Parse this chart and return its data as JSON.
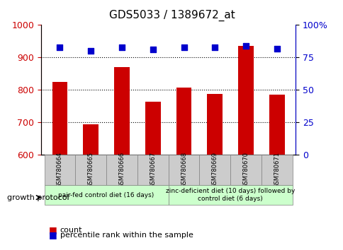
{
  "title": "GDS5033 / 1389672_at",
  "samples": [
    "GSM780664",
    "GSM780665",
    "GSM780666",
    "GSM780667",
    "GSM780668",
    "GSM780669",
    "GSM780670",
    "GSM780671"
  ],
  "counts": [
    825,
    695,
    870,
    765,
    808,
    787,
    935,
    785
  ],
  "percentiles": [
    83,
    80,
    83,
    81,
    83,
    83,
    84,
    82
  ],
  "ylim_left": [
    600,
    1000
  ],
  "ylim_right": [
    0,
    100
  ],
  "yticks_left": [
    600,
    700,
    800,
    900,
    1000
  ],
  "yticks_right": [
    0,
    25,
    50,
    75,
    100
  ],
  "bar_color": "#cc0000",
  "dot_color": "#0000cc",
  "bar_width": 0.5,
  "group1_label": "pair-fed control diet (16 days)",
  "group2_label": "zinc-deficient diet (10 days) followed by\ncontrol diet (6 days)",
  "group1_indices": [
    0,
    1,
    2,
    3
  ],
  "group2_indices": [
    4,
    5,
    6,
    7
  ],
  "protocol_label": "growth protocol",
  "legend_count": "count",
  "legend_percentile": "percentile rank within the sample",
  "bg_color_group": "#cccccc",
  "bg_color_group1": "#ccffcc",
  "bg_color_group2": "#ccffcc",
  "plot_bg": "#ffffff",
  "grid_color": "#000000",
  "left_label_color": "#cc0000",
  "right_label_color": "#0000cc"
}
